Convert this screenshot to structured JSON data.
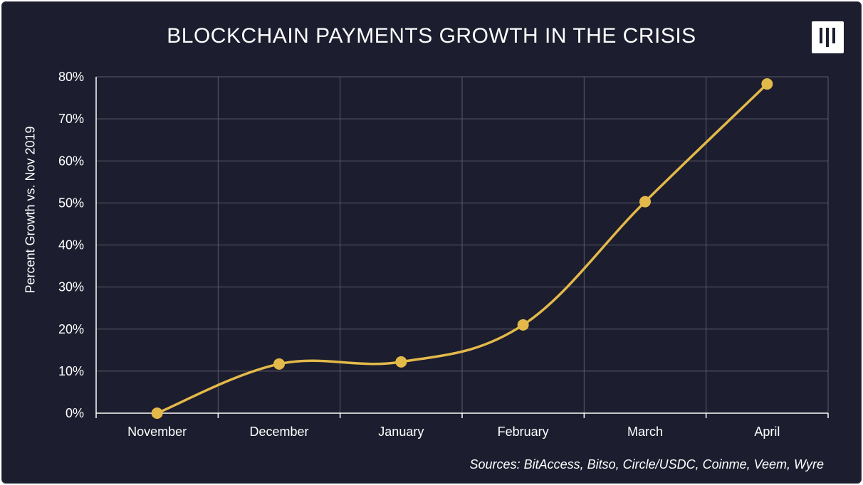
{
  "header": {
    "title": "BLOCKCHAIN PAYMENTS GROWTH IN THE CRISIS",
    "logo_alt": "publisher-logo"
  },
  "source_note": "Sources: BitAccess, Bitso, Circle/USDC, Coinme, Veem, Wyre",
  "colors": {
    "background": "#1c1d2e",
    "line": "#e3b94a",
    "grid": "#5b5c68",
    "text": "#ffffff"
  },
  "chart_data": {
    "type": "line",
    "title": "BLOCKCHAIN PAYMENTS GROWTH IN THE CRISIS",
    "xlabel": "",
    "ylabel": "Percent Growth vs. Nov 2019",
    "categories": [
      "November",
      "December",
      "January",
      "February",
      "March",
      "April"
    ],
    "series": [
      {
        "values": [
          0,
          11.7,
          12.2,
          21,
          50.3,
          78.3
        ]
      }
    ],
    "ylim": [
      0,
      80
    ],
    "yticks": [
      0,
      10,
      20,
      30,
      40,
      50,
      60,
      70,
      80
    ],
    "ytick_labels": [
      "0%",
      "10%",
      "20%",
      "30%",
      "40%",
      "50%",
      "60%",
      "70%",
      "80%"
    ],
    "grid": true,
    "smooth": true,
    "legend": "none"
  }
}
